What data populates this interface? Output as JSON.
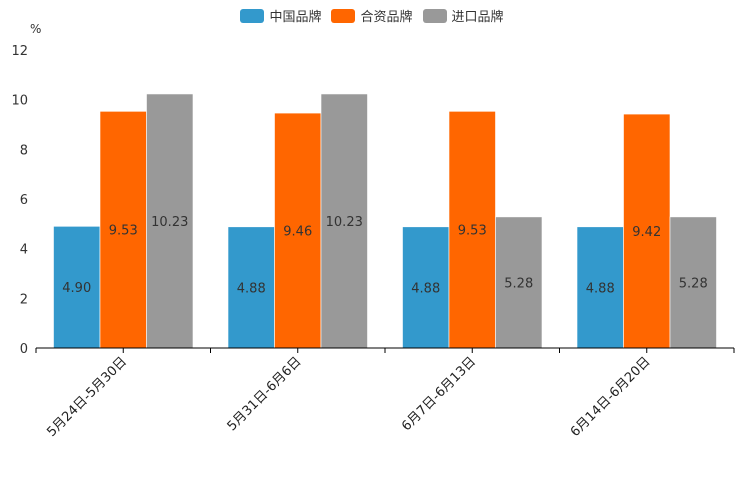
{
  "chart_data": {
    "type": "bar",
    "title": "",
    "unit_label": "%",
    "xlabel": "",
    "ylabel": "%",
    "ylim": [
      0,
      12
    ],
    "yticks": [
      0,
      2,
      4,
      6,
      8,
      10,
      12
    ],
    "grid": false,
    "legend_position": "top-center",
    "categories": [
      "5月24日-5月30日",
      "5月31日-6月6日",
      "6月7日-6月13日",
      "6月14日-6月20日"
    ],
    "series": [
      {
        "name": "中国品牌",
        "color": "#3399cc",
        "values": [
          4.9,
          4.88,
          4.88,
          4.88
        ],
        "labels": [
          "4.90",
          "4.88",
          "4.88",
          "4.88"
        ]
      },
      {
        "name": "合资品牌",
        "color": "#ff6600",
        "values": [
          9.53,
          9.46,
          9.53,
          9.42
        ],
        "labels": [
          "9.53",
          "9.46",
          "9.53",
          "9.42"
        ]
      },
      {
        "name": "进口品牌",
        "color": "#999999",
        "values": [
          10.23,
          10.23,
          5.28,
          5.28
        ],
        "labels": [
          "10.23",
          "10.23",
          "5.28",
          "5.28"
        ]
      }
    ]
  }
}
